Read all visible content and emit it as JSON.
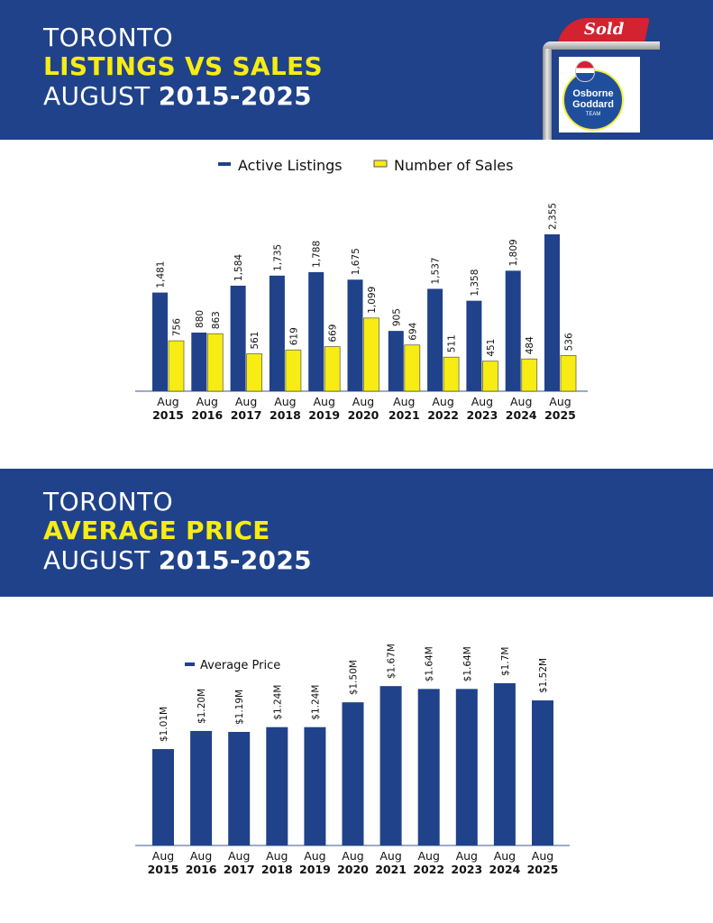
{
  "colors": {
    "brand_blue": "#1f428a",
    "accent_yellow": "#f7ec13",
    "sold_red": "#d32230"
  },
  "logo": {
    "sold_label": "Sold",
    "brand_line1": "Osborne",
    "brand_line2": "Goddard",
    "brand_line3": "TEAM"
  },
  "section1": {
    "title_line1": "TORONTO",
    "title_line2": "LISTINGS VS SALES",
    "title_line3_prefix": "AUGUST ",
    "title_line3_years": "2015-2025"
  },
  "section2": {
    "title_line1": "TORONTO",
    "title_line2": "AVERAGE PRICE",
    "title_line3_prefix": "AUGUST ",
    "title_line3_years": "2015-2025"
  },
  "chart_data": [
    {
      "type": "bar",
      "title": "Toronto Listings vs Sales August 2015-2025",
      "xlabel": "",
      "ylabel": "",
      "legend_position": "top-center",
      "grid": false,
      "ylim": [
        0,
        2500
      ],
      "categories": [
        {
          "month": "Aug",
          "year": "2015"
        },
        {
          "month": "Aug",
          "year": "2016"
        },
        {
          "month": "Aug",
          "year": "2017"
        },
        {
          "month": "Aug",
          "year": "2018"
        },
        {
          "month": "Aug",
          "year": "2019"
        },
        {
          "month": "Aug",
          "year": "2020"
        },
        {
          "month": "Aug",
          "year": "2021"
        },
        {
          "month": "Aug",
          "year": "2022"
        },
        {
          "month": "Aug",
          "year": "2023"
        },
        {
          "month": "Aug",
          "year": "2024"
        },
        {
          "month": "Aug",
          "year": "2025"
        }
      ],
      "series": [
        {
          "name": "Active Listings",
          "color": "#1f428a",
          "values": [
            1481,
            880,
            1584,
            1735,
            1788,
            1675,
            905,
            1537,
            1358,
            1809,
            2355
          ],
          "labels": [
            "1,481",
            "880",
            "1,584",
            "1,735",
            "1,788",
            "1,675",
            "905",
            "1,537",
            "1,358",
            "1,809",
            "2,355"
          ]
        },
        {
          "name": "Number of Sales",
          "color": "#f7ec13",
          "values": [
            756,
            863,
            561,
            619,
            669,
            1099,
            694,
            511,
            451,
            484,
            536
          ],
          "labels": [
            "756",
            "863",
            "561",
            "619",
            "669",
            "1,099",
            "694",
            "511",
            "451",
            "484",
            "536"
          ]
        }
      ]
    },
    {
      "type": "bar",
      "title": "Toronto Average Price August 2015-2025",
      "xlabel": "",
      "ylabel": "",
      "legend_position": "top-left",
      "grid": false,
      "ylim": [
        0,
        2.0
      ],
      "unit": "$M",
      "categories": [
        {
          "month": "Aug",
          "year": "2015"
        },
        {
          "month": "Aug",
          "year": "2016"
        },
        {
          "month": "Aug",
          "year": "2017"
        },
        {
          "month": "Aug",
          "year": "2018"
        },
        {
          "month": "Aug",
          "year": "2019"
        },
        {
          "month": "Aug",
          "year": "2020"
        },
        {
          "month": "Aug",
          "year": "2021"
        },
        {
          "month": "Aug",
          "year": "2022"
        },
        {
          "month": "Aug",
          "year": "2023"
        },
        {
          "month": "Aug",
          "year": "2024"
        },
        {
          "month": "Aug",
          "year": "2025"
        }
      ],
      "series": [
        {
          "name": "Average Price",
          "color": "#1f428a",
          "values": [
            1.01,
            1.2,
            1.19,
            1.24,
            1.24,
            1.5,
            1.67,
            1.64,
            1.64,
            1.7,
            1.52
          ],
          "labels": [
            "$1.01M",
            "$1.20M",
            "$1.19M",
            "$1.24M",
            "$1.24M",
            "$1.50M",
            "$1.67M",
            "$1.64M",
            "$1.64M",
            "$1.7M",
            "$1.52M"
          ]
        }
      ]
    }
  ]
}
